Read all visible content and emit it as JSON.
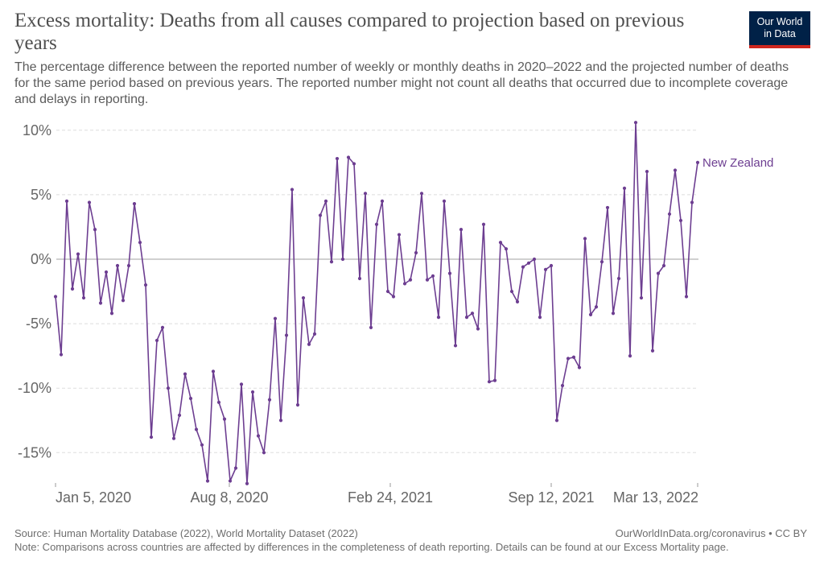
{
  "header": {
    "title": "Excess mortality: Deaths from all causes compared to projection based on previous years",
    "subtitle": "The percentage difference between the reported number of weekly or monthly deaths in 2020–2022 and the projected number of deaths for the same period based on previous years. The reported number might not count all deaths that occurred due to incomplete coverage and delays in reporting.",
    "logo_line1": "Our World",
    "logo_line2": "in Data"
  },
  "colors": {
    "series": "#6d3e91",
    "grid": "#dddddd",
    "zero_line": "#a0a0a0",
    "logo_bg": "#002147",
    "logo_accent": "#ce261e"
  },
  "chart_data": {
    "type": "line",
    "title": "Excess mortality: Deaths from all causes compared to projection based on previous years",
    "xlabel": "",
    "ylabel": "",
    "ylim": [
      -17.5,
      10.5
    ],
    "y_ticks": [
      10,
      5,
      0,
      -5,
      -10,
      -15
    ],
    "y_tick_labels": [
      "10%",
      "5%",
      "0%",
      "-5%",
      "-10%",
      "-15%"
    ],
    "x_tick_labels": [
      "Jan 5, 2020",
      "Aug 8, 2020",
      "Feb 24, 2021",
      "Sep 12, 2021",
      "Mar 13, 2022"
    ],
    "x_tick_dates": [
      "2020-01-05",
      "2020-08-08",
      "2021-02-24",
      "2021-09-12",
      "2022-03-13"
    ],
    "x_start": "2020-01-05",
    "x_end": "2022-03-13",
    "grid": true,
    "legend": "inline label at end of line",
    "series": [
      {
        "name": "New Zealand",
        "values": [
          -2.9,
          -7.4,
          4.5,
          -2.3,
          0.4,
          -3.0,
          4.4,
          2.3,
          -3.4,
          -1.0,
          -4.2,
          -0.5,
          -3.2,
          -0.5,
          4.3,
          1.3,
          -2.0,
          -13.8,
          -6.3,
          -5.3,
          -10.0,
          -13.9,
          -12.1,
          -8.9,
          -10.8,
          -13.2,
          -14.4,
          -17.2,
          -8.7,
          -11.1,
          -12.4,
          -17.2,
          -16.2,
          -9.7,
          -17.4,
          -10.3,
          -13.7,
          -15.0,
          -10.9,
          -4.6,
          -12.5,
          -5.9,
          5.4,
          -11.3,
          -3.0,
          -6.6,
          -5.8,
          3.4,
          4.5,
          -0.2,
          7.8,
          0.0,
          7.9,
          7.4,
          -1.5,
          5.1,
          -5.3,
          2.7,
          4.5,
          -2.5,
          -2.9,
          1.9,
          -1.9,
          -1.6,
          0.5,
          5.1,
          -1.6,
          -1.3,
          -4.5,
          4.5,
          -1.1,
          -6.7,
          2.3,
          -4.5,
          -4.2,
          -5.4,
          2.7,
          -9.5,
          -9.4,
          1.3,
          0.8,
          -2.5,
          -3.3,
          -0.6,
          -0.3,
          0.0,
          -4.5,
          -0.8,
          -0.5,
          -12.5,
          -9.8,
          -7.7,
          -7.6,
          -8.4,
          1.6,
          -4.3,
          -3.7,
          -0.2,
          4.0,
          -4.2,
          -1.5,
          5.5,
          -7.5,
          10.6,
          -3.0,
          6.8,
          -7.1,
          -1.1,
          -0.5,
          3.5,
          6.9,
          3.0,
          -2.9,
          4.4,
          7.5
        ]
      }
    ]
  },
  "footer": {
    "source": "Source: Human Mortality Database (2022), World Mortality Dataset (2022)",
    "url": "OurWorldInData.org/coronavirus • CC BY",
    "note": "Note: Comparisons across countries are affected by differences in the completeness of death reporting. Details can be found at our Excess Mortality page."
  }
}
